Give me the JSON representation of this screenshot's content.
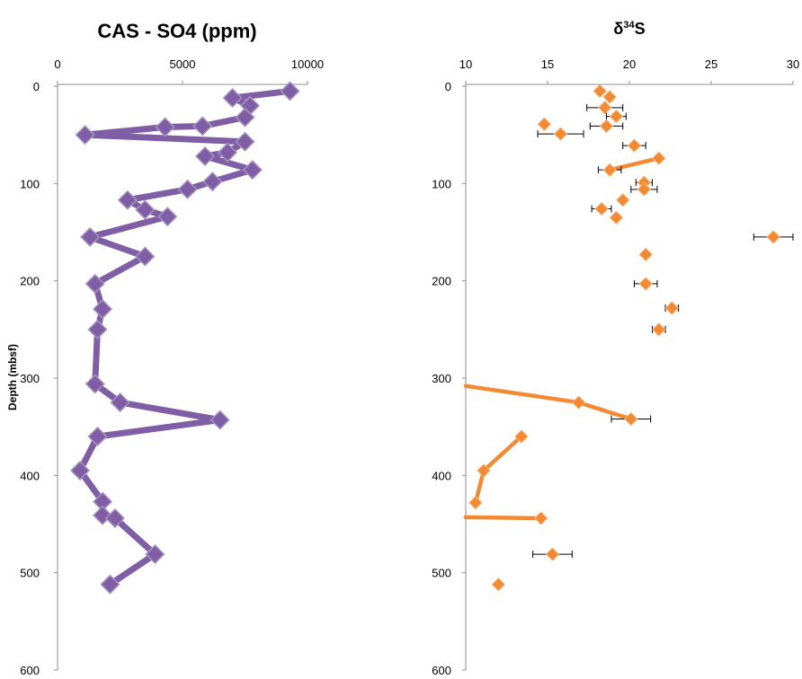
{
  "chart_data": [
    {
      "type": "line",
      "title": "CAS - SO4 (ppm)",
      "xlabel": "",
      "ylabel": "Depth (mbsf)",
      "xlim": [
        0,
        10000
      ],
      "ylim": [
        0,
        600
      ],
      "y_reversed": true,
      "x_axis_position": "top",
      "xticks": [
        "0",
        "5000",
        "10000"
      ],
      "yticks": [
        "0",
        "100",
        "200",
        "300",
        "400",
        "500",
        "600"
      ],
      "color": "#7f5ea5",
      "marker": "diamond",
      "series": [
        {
          "values": [
            {
              "x": 9300,
              "y": 5
            },
            {
              "x": 7000,
              "y": 12
            },
            {
              "x": 7700,
              "y": 20
            },
            {
              "x": 7500,
              "y": 32
            },
            {
              "x": 5800,
              "y": 41
            },
            {
              "x": 4300,
              "y": 42
            },
            {
              "x": 1100,
              "y": 50
            },
            {
              "x": 7500,
              "y": 57
            },
            {
              "x": 6800,
              "y": 68
            },
            {
              "x": 5900,
              "y": 72
            },
            {
              "x": 7800,
              "y": 86
            },
            {
              "x": 6200,
              "y": 98
            },
            {
              "x": 5200,
              "y": 106
            },
            {
              "x": 2800,
              "y": 117
            },
            {
              "x": 3500,
              "y": 127
            },
            {
              "x": 4400,
              "y": 134
            },
            {
              "x": 1300,
              "y": 155
            },
            {
              "x": 3500,
              "y": 175
            },
            {
              "x": 1500,
              "y": 203
            },
            {
              "x": 1800,
              "y": 229
            },
            {
              "x": 1600,
              "y": 250
            },
            {
              "x": 1500,
              "y": 306
            },
            {
              "x": 2500,
              "y": 325
            },
            {
              "x": 6500,
              "y": 343
            },
            {
              "x": 1600,
              "y": 360
            },
            {
              "x": 900,
              "y": 395
            },
            {
              "x": 1800,
              "y": 427
            },
            {
              "x": 1800,
              "y": 441
            },
            {
              "x": 2300,
              "y": 444
            },
            {
              "x": 3900,
              "y": 481
            },
            {
              "x": 2100,
              "y": 512
            }
          ]
        }
      ]
    },
    {
      "type": "scatter",
      "title": "δ³⁴S",
      "title_base": "δ",
      "title_sup": "34",
      "title_tail": "S",
      "xlabel": "",
      "ylabel": "",
      "xlim": [
        10,
        30
      ],
      "ylim": [
        0,
        600
      ],
      "y_reversed": true,
      "x_axis_position": "top",
      "xticks": [
        "10",
        "15",
        "20",
        "25",
        "30"
      ],
      "yticks": [
        "0",
        "100",
        "200",
        "300",
        "400",
        "500",
        "600"
      ],
      "color": "#f28a34",
      "marker": "diamond",
      "error_bars": "horizontal",
      "points": [
        {
          "x": 18.2,
          "y": 5,
          "err": 0
        },
        {
          "x": 18.8,
          "y": 11,
          "err": 0
        },
        {
          "x": 18.5,
          "y": 22,
          "err": 1.1
        },
        {
          "x": 19.2,
          "y": 31,
          "err": 0.6
        },
        {
          "x": 14.8,
          "y": 39,
          "err": 0
        },
        {
          "x": 18.6,
          "y": 41,
          "err": 1.0
        },
        {
          "x": 15.8,
          "y": 49,
          "err": 1.4
        },
        {
          "x": 20.3,
          "y": 61,
          "err": 0.7
        },
        {
          "x": 21.8,
          "y": 74,
          "err": 0
        },
        {
          "x": 18.8,
          "y": 86,
          "err": 0.7
        },
        {
          "x": 20.9,
          "y": 99,
          "err": 0.5
        },
        {
          "x": 20.9,
          "y": 106,
          "err": 0.8
        },
        {
          "x": 19.6,
          "y": 117,
          "err": 0
        },
        {
          "x": 18.3,
          "y": 126,
          "err": 0.6
        },
        {
          "x": 19.2,
          "y": 135,
          "err": 0
        },
        {
          "x": 28.8,
          "y": 155,
          "err": 1.2
        },
        {
          "x": 21.0,
          "y": 173,
          "err": 0
        },
        {
          "x": 21.0,
          "y": 203,
          "err": 0.7
        },
        {
          "x": 22.6,
          "y": 228,
          "err": 0.4
        },
        {
          "x": 21.8,
          "y": 250,
          "err": 0.4
        },
        {
          "x": 16.9,
          "y": 325,
          "err": 0
        },
        {
          "x": 20.1,
          "y": 342,
          "err": 1.2
        },
        {
          "x": 13.4,
          "y": 360,
          "err": 0
        },
        {
          "x": 11.1,
          "y": 395,
          "err": 0
        },
        {
          "x": 10.6,
          "y": 428,
          "err": 0
        },
        {
          "x": 14.6,
          "y": 444,
          "err": 0
        },
        {
          "x": 15.3,
          "y": 481,
          "err": 1.2
        },
        {
          "x": 12.0,
          "y": 512,
          "err": 0
        }
      ],
      "line_segments": [
        [
          {
            "x": 21.8,
            "y": 74
          },
          {
            "x": 18.8,
            "y": 86
          }
        ],
        [
          {
            "x": 10.0,
            "y": 308
          },
          {
            "x": 16.9,
            "y": 325
          },
          {
            "x": 20.1,
            "y": 342
          }
        ],
        [
          {
            "x": 13.4,
            "y": 360
          },
          {
            "x": 11.1,
            "y": 395
          },
          {
            "x": 10.6,
            "y": 428
          }
        ],
        [
          {
            "x": 14.6,
            "y": 444
          },
          {
            "x": 10.0,
            "y": 443
          }
        ]
      ]
    }
  ]
}
